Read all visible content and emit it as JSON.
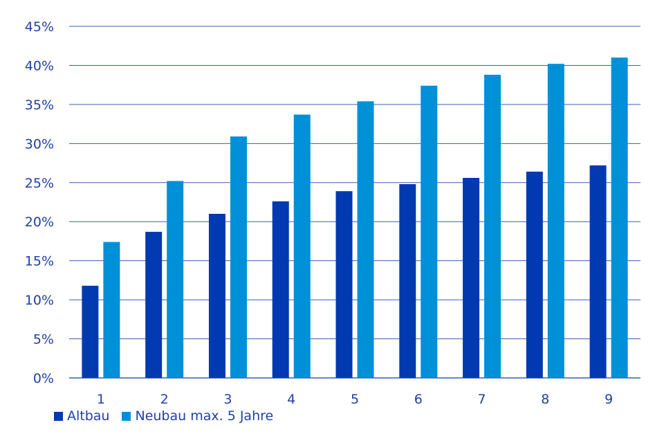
{
  "chart_data": {
    "type": "bar",
    "categories": [
      "1",
      "2",
      "3",
      "4",
      "5",
      "6",
      "7",
      "8",
      "9"
    ],
    "series": [
      {
        "name": "Altbau",
        "color": "#0039b0",
        "values": [
          11.8,
          18.7,
          21.0,
          22.6,
          23.9,
          24.8,
          25.6,
          26.4,
          27.2
        ]
      },
      {
        "name": "Neubau max. 5 Jahre",
        "color": "#0090d8",
        "values": [
          17.4,
          25.2,
          30.9,
          33.7,
          35.4,
          37.4,
          38.8,
          40.2,
          41.0
        ]
      }
    ],
    "ylim": [
      0,
      45
    ],
    "yticks": [
      "0%",
      "5%",
      "10%",
      "15%",
      "20%",
      "25%",
      "30%",
      "35%",
      "40%",
      "45%"
    ],
    "grid": true,
    "legend_position": "bottom-left",
    "gridline_color": "#3a5bb8"
  }
}
